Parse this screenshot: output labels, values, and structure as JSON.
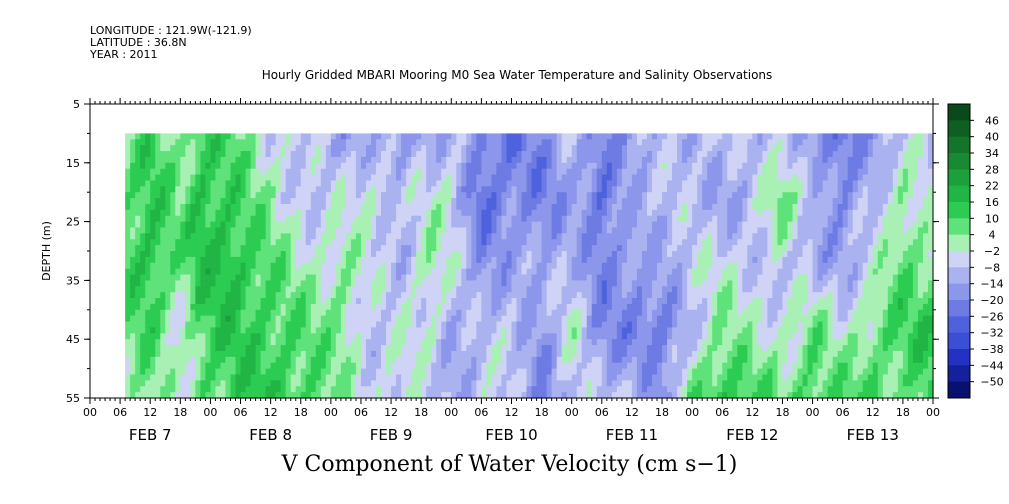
{
  "header": {
    "longitude": "LONGITUDE : 121.9W(-121.9)",
    "latitude": "LATITUDE : 36.8N",
    "year": "YEAR : 2011"
  },
  "chart_data": {
    "type": "heatmap",
    "title": "Hourly Gridded MBARI Mooring M0 Sea Water Temperature and Salinity Observations",
    "xlabel": "",
    "ylabel": "DEPTH (m)",
    "bottom_label": "V Component of Water Velocity (cm s−1)",
    "ylim": [
      55,
      5
    ],
    "y_ticks": [
      "5",
      "15",
      "25",
      "35",
      "45",
      "55"
    ],
    "x_hour_ticks": [
      "00",
      "06",
      "12",
      "18",
      "00",
      "06",
      "12",
      "18",
      "00",
      "06",
      "12",
      "18",
      "00",
      "06",
      "12",
      "18",
      "00",
      "06",
      "12",
      "18",
      "00",
      "06",
      "12",
      "18",
      "00",
      "06",
      "12",
      "18",
      "00"
    ],
    "x_day_labels": [
      "FEB  7",
      "FEB  8",
      "FEB  9",
      "FEB 10",
      "FEB 11",
      "FEB 12",
      "FEB 13"
    ],
    "data_start_hour": 7,
    "data_depth_top": 10,
    "colorbar": {
      "levels": [
        "46",
        "40",
        "34",
        "28",
        "22",
        "16",
        "10",
        "4",
        "−2",
        "−8",
        "−14",
        "−20",
        "−26",
        "−32",
        "−38",
        "−44",
        "−50"
      ],
      "colors": [
        "#0a4a1a",
        "#0f5f22",
        "#13742a",
        "#178a33",
        "#1ba03c",
        "#20b545",
        "#2ccc52",
        "#5fe27a",
        "#a8f0b4",
        "#cfd3f5",
        "#aab2f0",
        "#8c96ea",
        "#6d7be3",
        "#4f62de",
        "#3a4fd6",
        "#2233c4",
        "#14209c",
        "#0a106e"
      ]
    },
    "columns": [
      {
        "hour": 7,
        "values": [
          4,
          8,
          10,
          6,
          2
        ]
      },
      {
        "hour": 12,
        "values": [
          10,
          14,
          16,
          10,
          4
        ]
      },
      {
        "hour": 18,
        "values": [
          2,
          4,
          6,
          -2,
          -6
        ]
      },
      {
        "hour": 22,
        "values": [
          12,
          16,
          14,
          10,
          8
        ]
      },
      {
        "hour": 28,
        "values": [
          8,
          12,
          18,
          14,
          10
        ]
      },
      {
        "hour": 34,
        "values": [
          -2,
          4,
          10,
          12,
          14
        ]
      },
      {
        "hour": 40,
        "values": [
          -6,
          -4,
          2,
          10,
          12
        ]
      },
      {
        "hour": 46,
        "values": [
          -10,
          -8,
          -2,
          4,
          8
        ]
      },
      {
        "hour": 50,
        "values": [
          -14,
          -6,
          4,
          6,
          2
        ]
      },
      {
        "hour": 56,
        "values": [
          -10,
          -2,
          -6,
          -8,
          -4
        ]
      },
      {
        "hour": 62,
        "values": [
          -18,
          -8,
          -10,
          -6,
          -2
        ]
      },
      {
        "hour": 68,
        "values": [
          -12,
          -4,
          4,
          -2,
          -10
        ]
      },
      {
        "hour": 72,
        "values": [
          -8,
          -2,
          -6,
          -10,
          -14
        ]
      },
      {
        "hour": 78,
        "values": [
          -20,
          -26,
          -16,
          -12,
          -4
        ]
      },
      {
        "hour": 84,
        "values": [
          -24,
          -20,
          -14,
          -6,
          -8
        ]
      },
      {
        "hour": 90,
        "values": [
          -18,
          -22,
          -14,
          -16,
          -20
        ]
      },
      {
        "hour": 96,
        "values": [
          -10,
          -14,
          -8,
          -2,
          -6
        ]
      },
      {
        "hour": 102,
        "values": [
          -20,
          -26,
          -22,
          -18,
          -10
        ]
      },
      {
        "hour": 108,
        "values": [
          -14,
          -10,
          -16,
          -22,
          -6
        ]
      },
      {
        "hour": 114,
        "values": [
          -12,
          -8,
          -12,
          -24,
          -20
        ]
      },
      {
        "hour": 120,
        "values": [
          -8,
          -10,
          -6,
          -8,
          6
        ]
      },
      {
        "hour": 126,
        "values": [
          -6,
          -14,
          -4,
          4,
          16
        ]
      },
      {
        "hour": 132,
        "values": [
          -12,
          -10,
          -6,
          -2,
          10
        ]
      },
      {
        "hour": 138,
        "values": [
          -4,
          8,
          -8,
          -2,
          4
        ]
      },
      {
        "hour": 144,
        "values": [
          -20,
          -6,
          -14,
          6,
          12
        ]
      },
      {
        "hour": 150,
        "values": [
          -26,
          -20,
          -12,
          -4,
          8
        ]
      },
      {
        "hour": 156,
        "values": [
          -14,
          -10,
          -6,
          6,
          10
        ]
      },
      {
        "hour": 162,
        "values": [
          -8,
          4,
          8,
          10,
          6
        ]
      },
      {
        "hour": 168,
        "values": [
          -6,
          -8,
          6,
          14,
          10
        ]
      }
    ]
  }
}
